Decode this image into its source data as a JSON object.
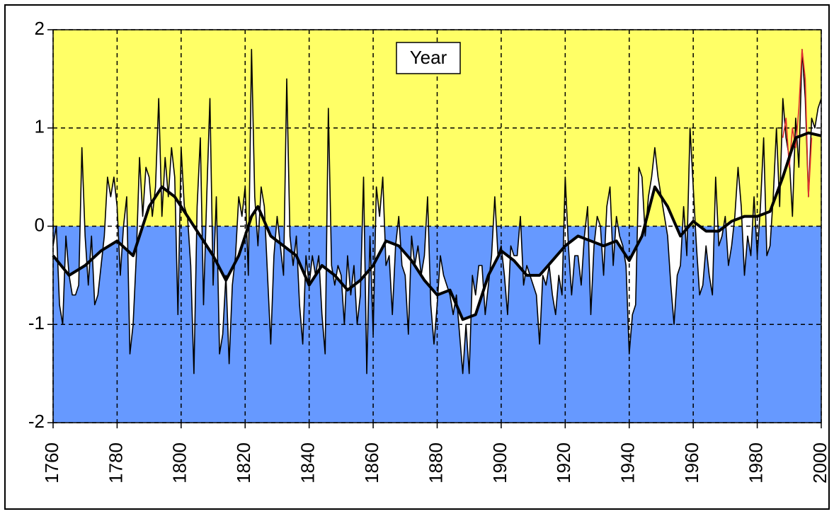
{
  "chart_data": {
    "type": "line",
    "title": "Year",
    "xlim": [
      1760,
      2000
    ],
    "xticks": [
      1760,
      1780,
      1800,
      1820,
      1840,
      1860,
      1880,
      1900,
      1920,
      1940,
      1960,
      1980,
      2000
    ],
    "ylim": [
      -2,
      2
    ],
    "yticks": [
      -2,
      -1,
      0,
      1,
      2
    ],
    "grid": true,
    "above_color": "#ffff66",
    "below_color": "#6699ff",
    "x": [
      1760,
      1761,
      1762,
      1763,
      1764,
      1765,
      1766,
      1767,
      1768,
      1769,
      1770,
      1771,
      1772,
      1773,
      1774,
      1775,
      1776,
      1777,
      1778,
      1779,
      1780,
      1781,
      1782,
      1783,
      1784,
      1785,
      1786,
      1787,
      1788,
      1789,
      1790,
      1791,
      1792,
      1793,
      1794,
      1795,
      1796,
      1797,
      1798,
      1799,
      1800,
      1801,
      1802,
      1803,
      1804,
      1805,
      1806,
      1807,
      1808,
      1809,
      1810,
      1811,
      1812,
      1813,
      1814,
      1815,
      1816,
      1817,
      1818,
      1819,
      1820,
      1821,
      1822,
      1823,
      1824,
      1825,
      1826,
      1827,
      1828,
      1829,
      1830,
      1831,
      1832,
      1833,
      1834,
      1835,
      1836,
      1837,
      1838,
      1839,
      1840,
      1841,
      1842,
      1843,
      1844,
      1845,
      1846,
      1847,
      1848,
      1849,
      1850,
      1851,
      1852,
      1853,
      1854,
      1855,
      1856,
      1857,
      1858,
      1859,
      1860,
      1861,
      1862,
      1863,
      1864,
      1865,
      1866,
      1867,
      1868,
      1869,
      1870,
      1871,
      1872,
      1873,
      1874,
      1875,
      1876,
      1877,
      1878,
      1879,
      1880,
      1881,
      1882,
      1883,
      1884,
      1885,
      1886,
      1887,
      1888,
      1889,
      1890,
      1891,
      1892,
      1893,
      1894,
      1895,
      1896,
      1897,
      1898,
      1899,
      1900,
      1901,
      1902,
      1903,
      1904,
      1905,
      1906,
      1907,
      1908,
      1909,
      1910,
      1911,
      1912,
      1913,
      1914,
      1915,
      1916,
      1917,
      1918,
      1919,
      1920,
      1921,
      1922,
      1923,
      1924,
      1925,
      1926,
      1927,
      1928,
      1929,
      1930,
      1931,
      1932,
      1933,
      1934,
      1935,
      1936,
      1937,
      1938,
      1939,
      1940,
      1941,
      1942,
      1943,
      1944,
      1945,
      1946,
      1947,
      1948,
      1949,
      1950,
      1951,
      1952,
      1953,
      1954,
      1955,
      1956,
      1957,
      1958,
      1959,
      1960,
      1961,
      1962,
      1963,
      1964,
      1965,
      1966,
      1967,
      1968,
      1969,
      1970,
      1971,
      1972,
      1973,
      1974,
      1975,
      1976,
      1977,
      1978,
      1979,
      1980,
      1981,
      1982,
      1983,
      1984,
      1985,
      1986,
      1987,
      1988,
      1989,
      1990,
      1991,
      1992,
      1993,
      1994,
      1995,
      1996,
      1997,
      1998,
      1999,
      2000
    ],
    "series": [
      {
        "color": "#000000",
        "values": [
          -0.2,
          0,
          -0.8,
          -1,
          -0.1,
          -0.5,
          -0.7,
          -0.7,
          -0.6,
          0.8,
          -0.1,
          -0.6,
          -0.1,
          -0.8,
          -0.7,
          -0.4,
          -0.1,
          0.5,
          0.3,
          0.5,
          0.2,
          -0.5,
          0,
          0.3,
          -1.3,
          -1.0,
          -0.3,
          0.7,
          0.1,
          0.6,
          0.5,
          0.1,
          0.4,
          1.3,
          0.1,
          0.7,
          0.3,
          0.8,
          0.5,
          -0.9,
          0.8,
          0.2,
          0.1,
          -0.4,
          -1.5,
          0.2,
          0.9,
          -0.8,
          0.3,
          1.3,
          -0.6,
          0.3,
          -1.3,
          -1.1,
          -0.5,
          -1.4,
          -0.6,
          -0.3,
          0.3,
          0.1,
          0.4,
          -0.5,
          1.8,
          0.3,
          -0.2,
          0.4,
          0.2,
          -0.5,
          -1.2,
          -0.3,
          0.1,
          -0.2,
          -0.5,
          1.5,
          -0.1,
          -0.4,
          -0.1,
          -0.8,
          -1.2,
          -0.3,
          -0.6,
          -0.3,
          -0.5,
          -0.3,
          -0.9,
          -1.3,
          1.2,
          -0.4,
          -0.6,
          -0.4,
          -0.5,
          -1.0,
          -0.3,
          -0.7,
          -0.4,
          -1.0,
          -0.7,
          0.5,
          -1.5,
          -0.1,
          -1.1,
          0.4,
          0.1,
          0.5,
          -0.4,
          -0.3,
          -0.9,
          -0.2,
          0.1,
          -0.4,
          -0.5,
          -1.1,
          -0.1,
          -0.4,
          -0.2,
          -0.5,
          -0.3,
          0.3,
          -0.8,
          -1.2,
          -0.8,
          -0.3,
          -0.5,
          -0.6,
          -0.7,
          -0.9,
          -0.7,
          -1.1,
          -1.5,
          -1.0,
          -1.5,
          -0.5,
          -0.7,
          -0.4,
          -0.4,
          -0.9,
          -0.6,
          -0.3,
          0.3,
          -0.3,
          -0.2,
          -0.5,
          -0.9,
          -0.2,
          -0.3,
          -0.3,
          0.1,
          -0.6,
          -0.4,
          -0.5,
          -0.6,
          -0.7,
          -1.2,
          -0.5,
          -0.6,
          -0.4,
          -0.7,
          -0.9,
          -0.5,
          -0.7,
          0.5,
          -0.2,
          -0.7,
          -0.3,
          -0.3,
          -0.6,
          -0.1,
          0.2,
          -0.9,
          -0.2,
          0.1,
          0,
          -0.5,
          0.2,
          0.4,
          -0.4,
          0.1,
          -0.1,
          -0.2,
          -0.4,
          -1.3,
          -0.9,
          -0.8,
          0.6,
          0.5,
          -0.1,
          0.3,
          0.5,
          0.8,
          0.5,
          0.3,
          0.1,
          -0.1,
          -0.6,
          -1.0,
          -0.5,
          -0.4,
          0.2,
          -0.3,
          1.0,
          0.4,
          -0.2,
          -0.7,
          -0.6,
          -0.2,
          -0.5,
          -0.7,
          0.5,
          -0.2,
          -0.1,
          0.1,
          -0.4,
          -0.2,
          0.1,
          0.6,
          0.2,
          -0.5,
          -0.1,
          -0.3,
          0.3,
          -0.3,
          0.2,
          0.9,
          -0.3,
          -0.2,
          0.3,
          1.0,
          0.2,
          1.3,
          0.9,
          0.7,
          0.1,
          1.1,
          0.6,
          1.8,
          1.3,
          0.3,
          1.1,
          1.0,
          1.2,
          1.3
        ]
      },
      {
        "color": "#000000",
        "smooth": true,
        "x": [
          1760,
          1765,
          1770,
          1775,
          1780,
          1785,
          1790,
          1794,
          1798,
          1802,
          1806,
          1810,
          1814,
          1818,
          1822,
          1824,
          1828,
          1832,
          1836,
          1840,
          1844,
          1848,
          1852,
          1856,
          1860,
          1864,
          1868,
          1872,
          1876,
          1880,
          1884,
          1888,
          1892,
          1896,
          1900,
          1904,
          1908,
          1912,
          1916,
          1920,
          1924,
          1928,
          1932,
          1936,
          1940,
          1944,
          1948,
          1952,
          1956,
          1960,
          1964,
          1968,
          1972,
          1976,
          1980,
          1984,
          1988,
          1992,
          1996,
          2000
        ],
        "values": [
          -0.3,
          -0.5,
          -0.4,
          -0.25,
          -0.15,
          -0.3,
          0.2,
          0.4,
          0.3,
          0.1,
          -0.1,
          -0.3,
          -0.55,
          -0.3,
          0.1,
          0.2,
          -0.1,
          -0.2,
          -0.3,
          -0.6,
          -0.4,
          -0.5,
          -0.65,
          -0.55,
          -0.4,
          -0.15,
          -0.2,
          -0.35,
          -0.55,
          -0.7,
          -0.65,
          -0.95,
          -0.9,
          -0.5,
          -0.25,
          -0.35,
          -0.5,
          -0.5,
          -0.35,
          -0.2,
          -0.1,
          -0.15,
          -0.2,
          -0.15,
          -0.35,
          -0.1,
          0.4,
          0.2,
          -0.1,
          0.05,
          -0.05,
          -0.05,
          0.05,
          0.1,
          0.1,
          0.15,
          0.5,
          0.9,
          0.95,
          0.92
        ]
      },
      {
        "color": "#e03030",
        "x": [
          1988,
          1989,
          1990,
          1991,
          1992,
          1993,
          1994,
          1995,
          1996,
          1997
        ],
        "values": [
          0.9,
          1.1,
          0.6,
          1.0,
          0.8,
          1.2,
          1.8,
          1.5,
          0.3,
          0.9
        ]
      }
    ]
  }
}
